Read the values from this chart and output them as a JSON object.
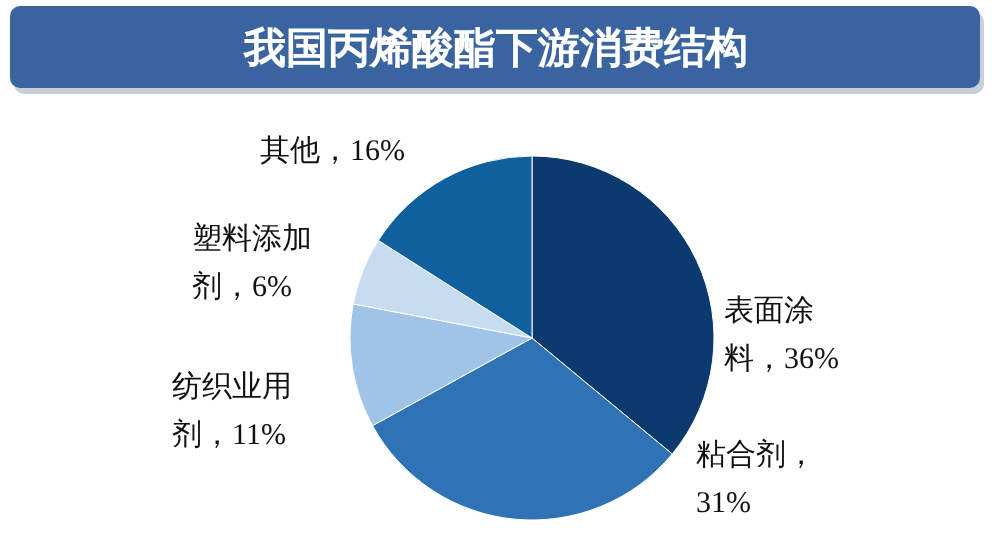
{
  "chart_data": {
    "type": "pie",
    "title": "我国丙烯酸酯下游消费结构",
    "categories": [
      "表面涂料，36%",
      "粘合剂，31%",
      "纺织业用剂，11%",
      "塑料添加剂，6%",
      "其他，16%"
    ],
    "values": [
      36,
      31,
      11,
      6,
      16
    ],
    "colors": [
      "#0c3a6e",
      "#2f72b6",
      "#9fc4e8",
      "#c8dcf0",
      "#10609d"
    ]
  }
}
